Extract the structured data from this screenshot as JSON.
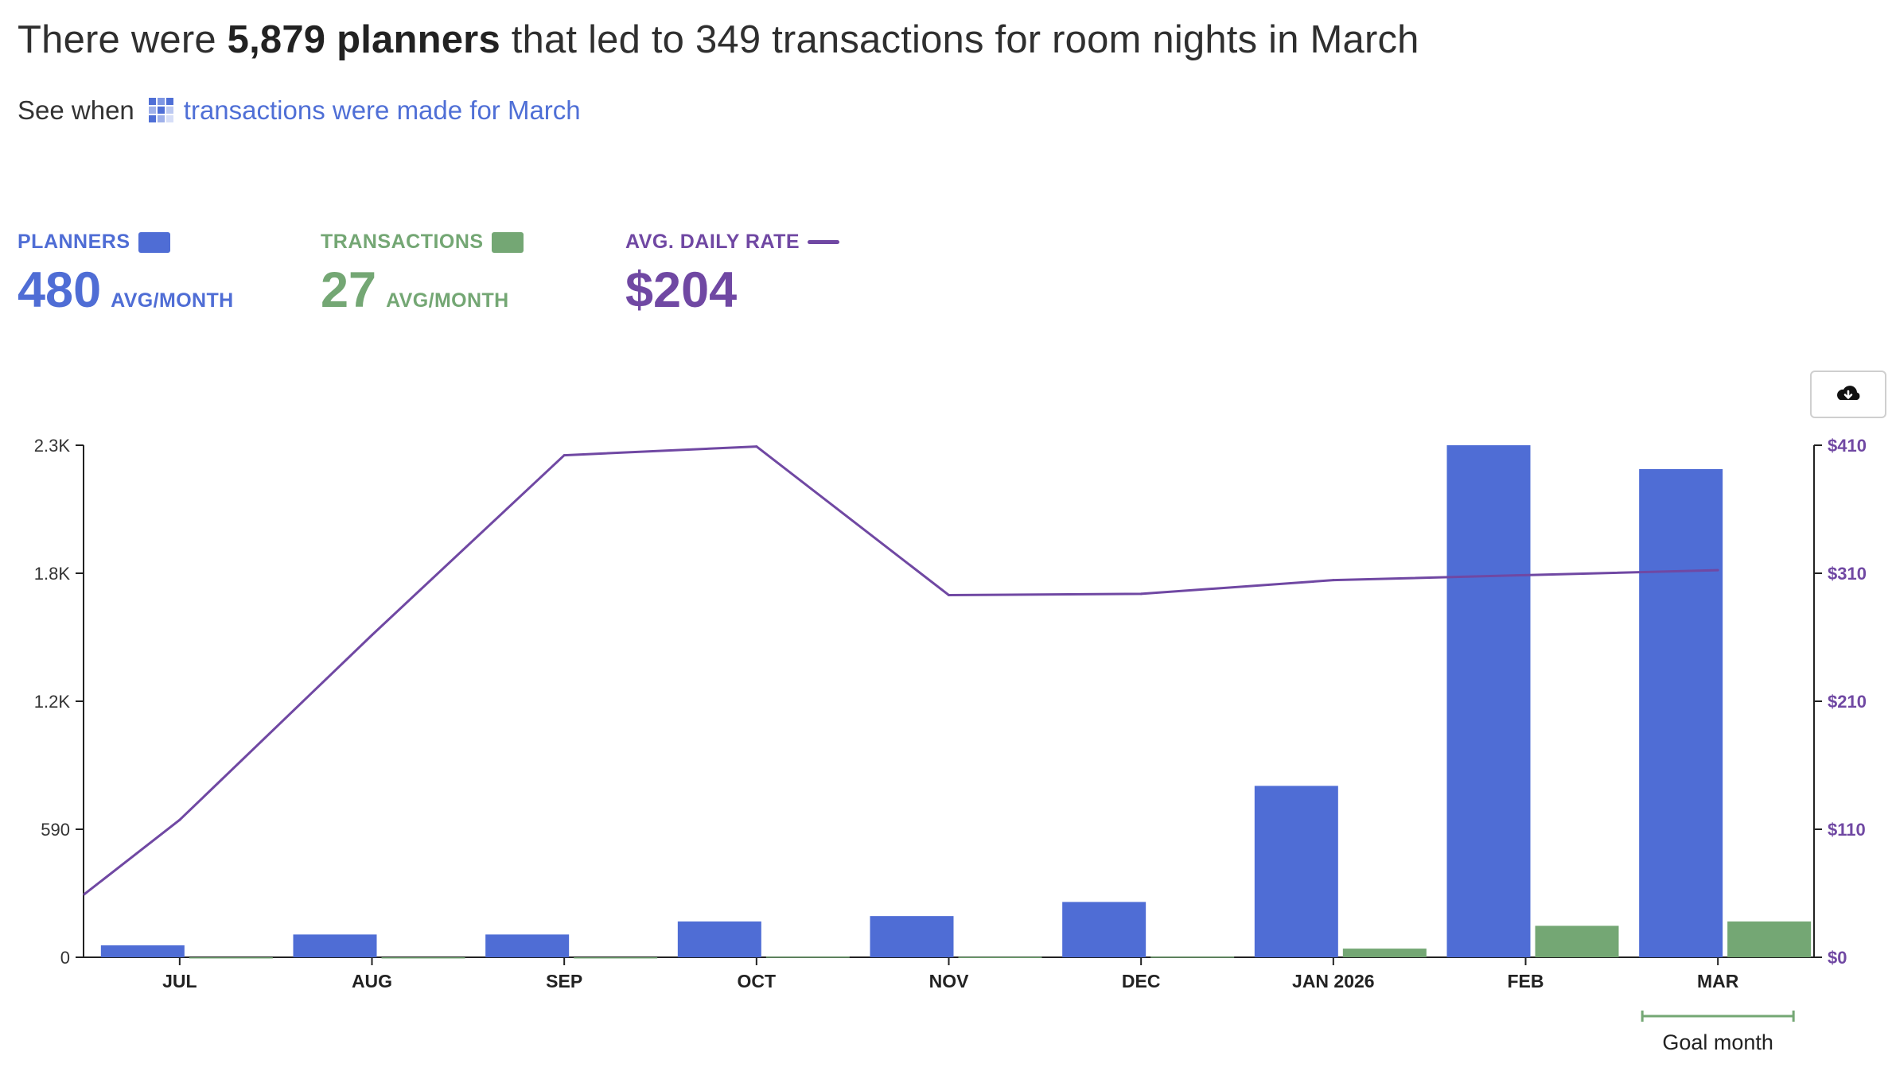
{
  "headline": {
    "pre": "There were ",
    "bold": "5,879 planners",
    "post": " that led to 349 transactions for room nights in March"
  },
  "see_when": {
    "prefix": "See when",
    "link": "transactions were made for March",
    "icon": "grid-icon"
  },
  "kpis": {
    "planners": {
      "label": "PLANNERS",
      "value": "480",
      "unit": "AVG/MONTH",
      "color": "#4f6dd5"
    },
    "transactions": {
      "label": "TRANSACTIONS",
      "value": "27",
      "unit": "AVG/MONTH",
      "color": "#74a774"
    },
    "adr": {
      "label": "AVG. DAILY RATE",
      "value": "$204",
      "color": "#7048a3"
    }
  },
  "download_button": {
    "icon": "cloud-download-icon"
  },
  "chart_data": {
    "type": "bar",
    "categories": [
      "JUL",
      "AUG",
      "SEP",
      "OCT",
      "NOV",
      "DEC",
      "JAN 2026",
      "FEB",
      "MAR"
    ],
    "left_axis": {
      "ticks": [
        "0",
        "590",
        "1.2K",
        "1.8K",
        "2.3K"
      ],
      "range": [
        0,
        2360
      ]
    },
    "right_axis": {
      "ticks": [
        "$0",
        "$110",
        "$210",
        "$310",
        "$410"
      ],
      "range": [
        0,
        410
      ]
    },
    "series": [
      {
        "name": "PLANNERS",
        "kind": "bar",
        "axis": "left",
        "color": "#4f6dd5",
        "values": [
          55,
          105,
          105,
          165,
          190,
          255,
          790,
          2360,
          2250
        ]
      },
      {
        "name": "TRANSACTIONS",
        "kind": "bar",
        "axis": "left",
        "color": "#74a774",
        "values": [
          0,
          0,
          0,
          3,
          2,
          3,
          40,
          145,
          165
        ]
      },
      {
        "name": "AVG. DAILY RATE",
        "kind": "line",
        "axis": "right",
        "color": "#7048a3",
        "values": [
          110,
          258,
          402,
          409,
          290,
          291,
          302,
          306,
          310
        ],
        "start_value": 50
      }
    ],
    "annotation": {
      "category": "MAR",
      "text": "Goal month"
    },
    "grid": false
  }
}
